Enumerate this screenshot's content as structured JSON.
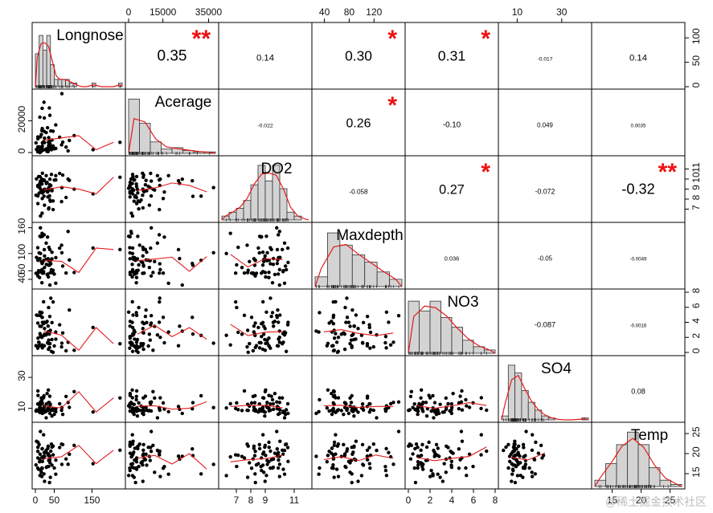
{
  "chart_data": {
    "type": "scatter-matrix",
    "title": "",
    "variables": [
      "Longnose",
      "Acerage",
      "DO2",
      "Maxdepth",
      "NO3",
      "SO4",
      "Temp"
    ],
    "ranges": [
      [
        0,
        230
      ],
      [
        0,
        38000
      ],
      [
        6,
        12
      ],
      [
        25,
        165
      ],
      [
        0,
        8
      ],
      [
        3,
        42
      ],
      [
        12,
        27
      ]
    ],
    "top_axis_ticks": {
      "1": [
        "0",
        "15000",
        "35000"
      ],
      "3": [
        "40",
        "80",
        "120"
      ],
      "5": [
        "10",
        "30"
      ]
    },
    "bottom_axis_ticks": {
      "0": [
        "0",
        "50",
        "150"
      ],
      "2": [
        "7",
        "8",
        "9",
        "11"
      ],
      "4": [
        "0",
        "2",
        "4",
        "6",
        "8"
      ],
      "6": [
        "15",
        "20",
        "25"
      ]
    },
    "left_axis_ticks": {
      "1": [
        "0",
        "20000"
      ],
      "3": [
        "40",
        "60",
        "100",
        "160"
      ],
      "5": [
        "10",
        "30"
      ]
    },
    "right_axis_ticks": {
      "0": [
        "0",
        "50",
        "100"
      ],
      "2": [
        "7",
        "8",
        "9",
        "10",
        "11"
      ],
      "4": [
        "0",
        "2",
        "4",
        "6",
        "8"
      ],
      "6": [
        "15",
        "20",
        "25"
      ]
    },
    "correlations": [
      {
        "row": 0,
        "col": 1,
        "value": "0.35",
        "stars": "**"
      },
      {
        "row": 0,
        "col": 2,
        "value": "0.14",
        "stars": ""
      },
      {
        "row": 0,
        "col": 3,
        "value": "0.30",
        "stars": "*"
      },
      {
        "row": 0,
        "col": 4,
        "value": "0.31",
        "stars": "*"
      },
      {
        "row": 0,
        "col": 5,
        "value": "-0.017",
        "stars": ""
      },
      {
        "row": 0,
        "col": 6,
        "value": "0.14",
        "stars": ""
      },
      {
        "row": 1,
        "col": 2,
        "value": "-0.022",
        "stars": ""
      },
      {
        "row": 1,
        "col": 3,
        "value": "0.26",
        "stars": "*"
      },
      {
        "row": 1,
        "col": 4,
        "value": "-0.10",
        "stars": ""
      },
      {
        "row": 1,
        "col": 5,
        "value": "0.049",
        "stars": ""
      },
      {
        "row": 1,
        "col": 6,
        "value": "0.0035",
        "stars": ""
      },
      {
        "row": 2,
        "col": 3,
        "value": "-0.058",
        "stars": ""
      },
      {
        "row": 2,
        "col": 4,
        "value": "0.27",
        "stars": "*"
      },
      {
        "row": 2,
        "col": 5,
        "value": "-0.072",
        "stars": ""
      },
      {
        "row": 2,
        "col": 6,
        "value": "-0.32",
        "stars": "**"
      },
      {
        "row": 3,
        "col": 4,
        "value": "0.036",
        "stars": ""
      },
      {
        "row": 3,
        "col": 5,
        "value": "-0.05",
        "stars": ""
      },
      {
        "row": 3,
        "col": 6,
        "value": "-0.0049",
        "stars": ""
      },
      {
        "row": 4,
        "col": 5,
        "value": "-0.087",
        "stars": ""
      },
      {
        "row": 4,
        "col": 6,
        "value": "-0.0016",
        "stars": ""
      },
      {
        "row": 5,
        "col": 6,
        "value": "0.08",
        "stars": ""
      }
    ],
    "histograms": [
      {
        "var": "Longnose",
        "bins": [
          0,
          10,
          20,
          30,
          40,
          50,
          60,
          70,
          80,
          90,
          100,
          110,
          120,
          130,
          140,
          150,
          160,
          170,
          180,
          190,
          200,
          210,
          220,
          230
        ],
        "counts": [
          9,
          14,
          10,
          14,
          6,
          2,
          2,
          2,
          2,
          1,
          1,
          0,
          0,
          0,
          0,
          1,
          0,
          0,
          0,
          0,
          0,
          0,
          1
        ],
        "max": 16
      },
      {
        "var": "Acerage",
        "bins": [
          0,
          5000,
          10000,
          15000,
          20000,
          25000,
          30000,
          35000,
          40000
        ],
        "counts": [
          38,
          21,
          8,
          3,
          4,
          2,
          1,
          1
        ],
        "max": 41
      },
      {
        "var": "DO2",
        "bins": [
          6,
          6.5,
          7,
          7.5,
          8,
          8.5,
          9,
          9.5,
          10,
          10.5,
          11,
          11.5,
          12
        ],
        "counts": [
          1,
          2,
          3,
          5,
          9,
          14,
          10,
          14,
          8,
          2,
          1,
          0
        ],
        "max": 15
      },
      {
        "var": "Maxdepth",
        "bins": [
          25,
          45,
          65,
          85,
          105,
          125,
          145,
          165
        ],
        "counts": [
          4,
          22,
          17,
          13,
          10,
          6,
          3
        ],
        "max": 24
      },
      {
        "var": "NO3",
        "bins": [
          0,
          1,
          2,
          3,
          4,
          5,
          6,
          7,
          8
        ],
        "counts": [
          16,
          13,
          16,
          11,
          8,
          4,
          2,
          1
        ],
        "max": 18
      },
      {
        "var": "SO4",
        "bins": [
          3,
          6,
          9,
          12,
          15,
          18,
          21,
          24,
          27,
          30,
          33,
          36,
          39,
          42
        ],
        "counts": [
          2,
          28,
          24,
          15,
          9,
          5,
          2,
          1,
          0,
          0,
          0,
          0,
          1
        ],
        "max": 30
      },
      {
        "var": "Temp",
        "bins": [
          12,
          14,
          16,
          18,
          20,
          22,
          24,
          26,
          28
        ],
        "counts": [
          3,
          11,
          20,
          26,
          20,
          9,
          3,
          1
        ],
        "max": 28
      }
    ]
  },
  "watermark": "@稀土掘金技术社区"
}
